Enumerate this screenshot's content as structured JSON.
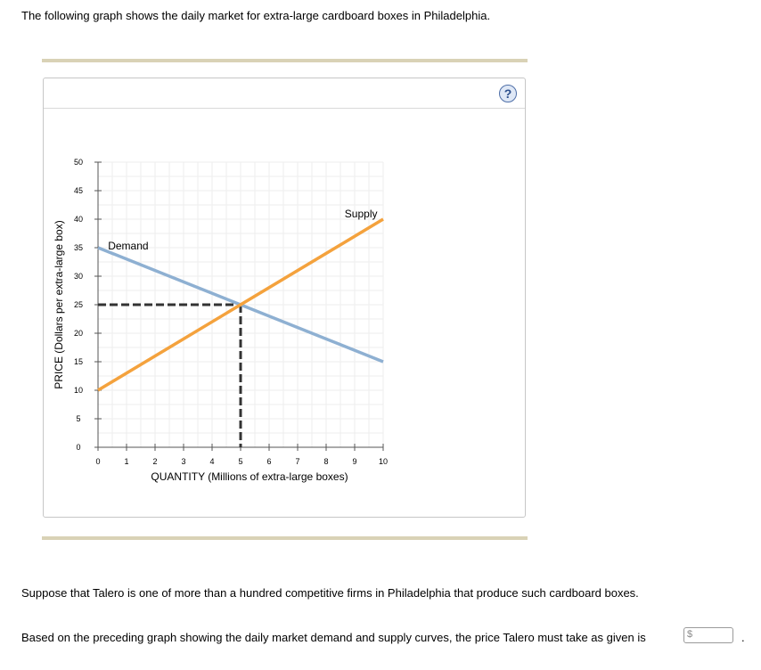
{
  "intro": "The following graph shows the daily market for extra-large cardboard boxes in Philadelphia.",
  "help_label": "?",
  "question1": "Suppose that Talero is one of more than a hundred competitive firms in Philadelphia that produce such cardboard boxes.",
  "question2": "Based on the preceding graph showing the daily market demand and supply curves, the price Talero must take as given is",
  "answer": {
    "currency": "$",
    "value": ""
  },
  "period": ".",
  "chart_data": {
    "type": "line",
    "xlabel": "QUANTITY (Millions of extra-large boxes)",
    "ylabel": "PRICE (Dollars per extra-large box)",
    "xlim": [
      0,
      10
    ],
    "ylim": [
      0,
      50
    ],
    "xticks": [
      0,
      1,
      2,
      3,
      4,
      5,
      6,
      7,
      8,
      9,
      10
    ],
    "yticks": [
      0,
      5,
      10,
      15,
      20,
      25,
      30,
      35,
      40,
      45,
      50
    ],
    "grid": true,
    "series": [
      {
        "name": "Demand",
        "color": "#8eb0d2",
        "x": [
          0,
          10
        ],
        "y": [
          35,
          15
        ]
      },
      {
        "name": "Supply",
        "color": "#f4a23d",
        "x": [
          0,
          10
        ],
        "y": [
          10,
          40
        ]
      }
    ],
    "equilibrium": {
      "x": 5,
      "y": 25
    }
  }
}
